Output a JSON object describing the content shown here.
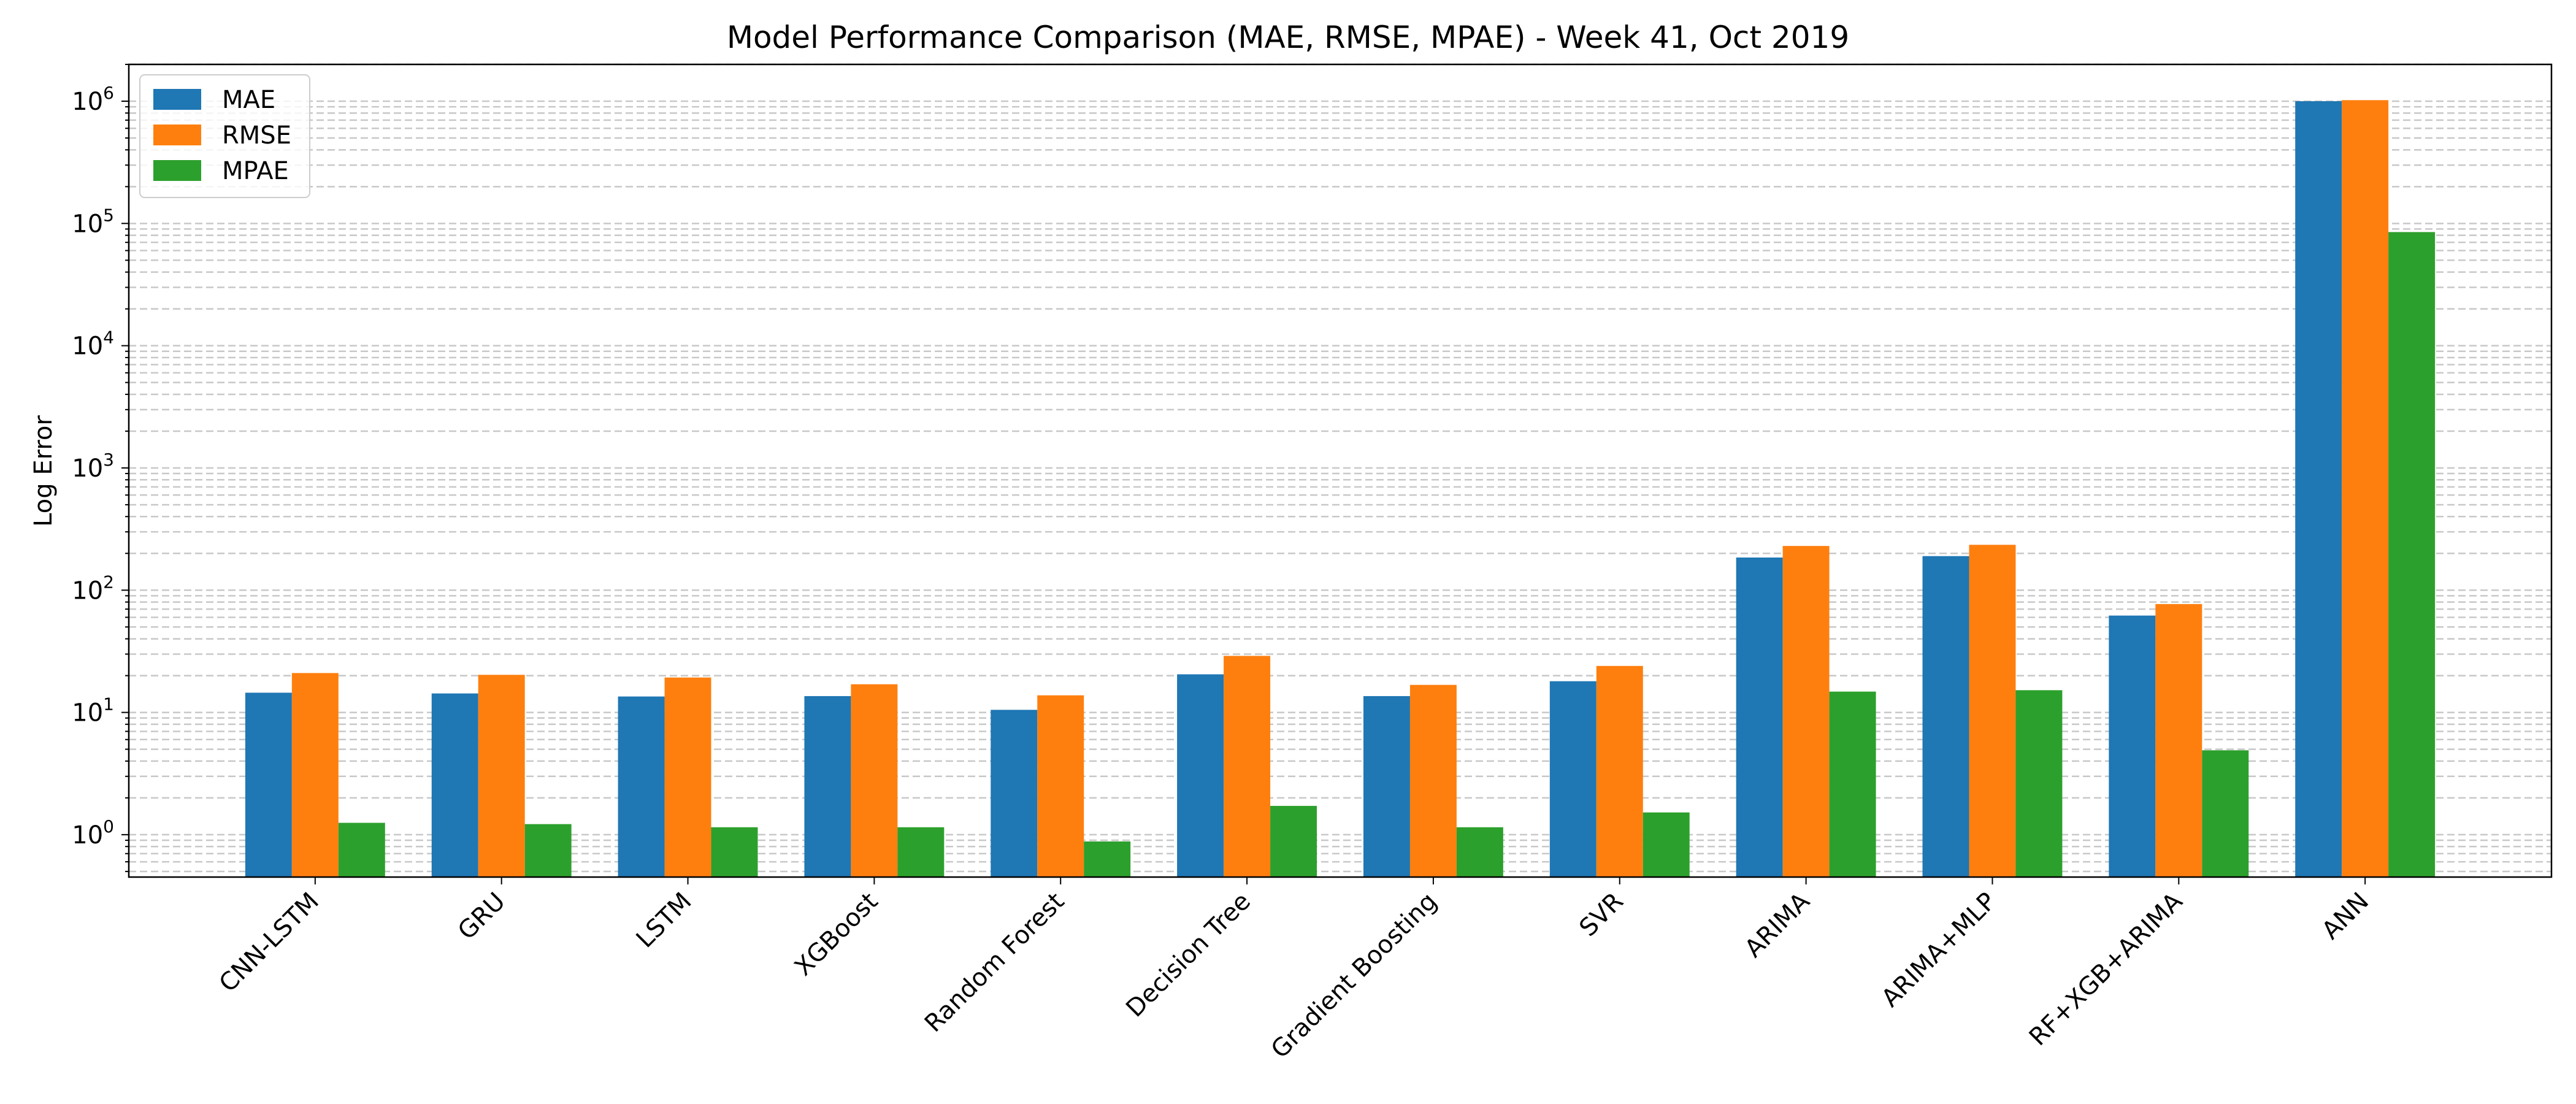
{
  "chart_data": {
    "type": "bar",
    "title": "Model Performance Comparison (MAE, RMSE, MPAE) - Week 41, Oct 2019",
    "xlabel": "",
    "ylabel": "Log Error",
    "yscale": "log",
    "ylim": [
      0.45,
      2000000
    ],
    "yticks": [
      {
        "value": 1,
        "label": "10^0"
      },
      {
        "value": 10,
        "label": "10^1"
      },
      {
        "value": 100,
        "label": "10^2"
      },
      {
        "value": 1000,
        "label": "10^3"
      },
      {
        "value": 10000,
        "label": "10^4"
      },
      {
        "value": 100000,
        "label": "10^5"
      },
      {
        "value": 1000000,
        "label": "10^6"
      }
    ],
    "grid": "y, dashed, major and minor",
    "legend_position": "top-left",
    "categories": [
      "CNN-LSTM",
      "GRU",
      "LSTM",
      "XGBoost",
      "Random Forest",
      "Decision Tree",
      "Gradient Boosting",
      "SVR",
      "ARIMA",
      "ARIMA+MLP",
      "RF+XGB+ARIMA",
      "ANN"
    ],
    "series": [
      {
        "name": "MAE",
        "color": "#1f77b4",
        "values": [
          14.5,
          14.3,
          13.5,
          13.6,
          10.5,
          20.5,
          13.6,
          18.0,
          185,
          190,
          62,
          1000000
        ]
      },
      {
        "name": "RMSE",
        "color": "#ff7f0e",
        "values": [
          21.0,
          20.3,
          19.3,
          17.0,
          13.8,
          29.0,
          16.8,
          24.0,
          230,
          235,
          77,
          1020000
        ]
      },
      {
        "name": "MPAE",
        "color": "#2ca02c",
        "values": [
          1.25,
          1.22,
          1.15,
          1.15,
          0.88,
          1.72,
          1.15,
          1.52,
          14.8,
          15.2,
          4.9,
          85000
        ]
      }
    ]
  }
}
